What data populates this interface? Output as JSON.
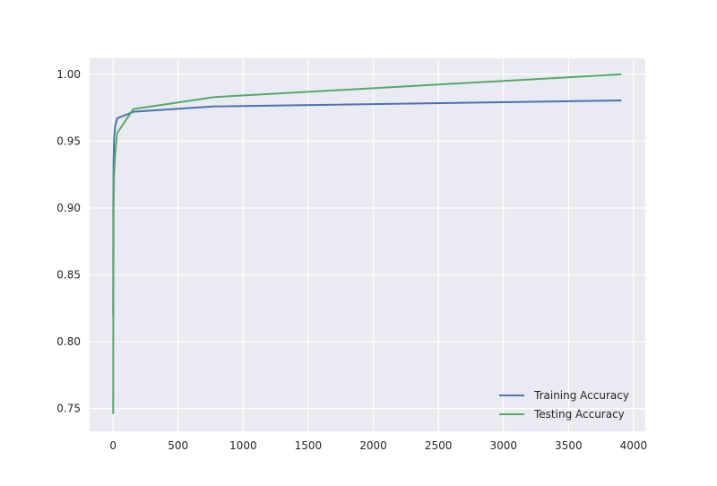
{
  "chart_data": {
    "type": "line",
    "title": "",
    "xlabel": "",
    "ylabel": "",
    "xlim": [
      -180,
      4090
    ],
    "ylim": [
      0.733,
      1.012
    ],
    "grid": true,
    "legend_position": "lower-right",
    "x_ticks": [
      {
        "value": 0,
        "label": "0"
      },
      {
        "value": 500,
        "label": "500"
      },
      {
        "value": 1000,
        "label": "1000"
      },
      {
        "value": 1500,
        "label": "1500"
      },
      {
        "value": 2000,
        "label": "2000"
      },
      {
        "value": 2500,
        "label": "2500"
      },
      {
        "value": 3000,
        "label": "3000"
      },
      {
        "value": 3500,
        "label": "3500"
      },
      {
        "value": 4000,
        "label": "4000"
      }
    ],
    "y_ticks": [
      {
        "value": 0.75,
        "label": "0.75"
      },
      {
        "value": 0.8,
        "label": "0.80"
      },
      {
        "value": 0.85,
        "label": "0.85"
      },
      {
        "value": 0.9,
        "label": "0.90"
      },
      {
        "value": 0.95,
        "label": "0.95"
      },
      {
        "value": 1.0,
        "label": "1.00"
      }
    ],
    "series": [
      {
        "name": "Training Accuracy",
        "color": "#4c72b0",
        "x": [
          1,
          2,
          4,
          8,
          16,
          31,
          156,
          781,
          3906
        ],
        "y": [
          0.82,
          0.9,
          0.935,
          0.952,
          0.961,
          0.967,
          0.972,
          0.976,
          0.9805
        ]
      },
      {
        "name": "Testing Accuracy",
        "color": "#55a868",
        "x": [
          1,
          2,
          4,
          8,
          16,
          31,
          156,
          781,
          3906
        ],
        "y": [
          0.746,
          0.82,
          0.9,
          0.925,
          0.94,
          0.956,
          0.974,
          0.983,
          1.0
        ]
      }
    ]
  }
}
